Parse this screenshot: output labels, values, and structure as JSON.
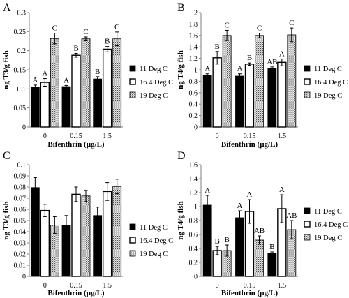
{
  "colors": {
    "11": "#000000",
    "16": "#ffffff",
    "19": "#cfcfcf",
    "axis": "#7f7f7f",
    "bar_stroke": "#000000"
  },
  "legend": [
    "11 Deg C",
    "16.4 Deg C",
    "19 Deg C"
  ],
  "chart_data": [
    {
      "type": "bar",
      "panel_label": "A",
      "categories": [
        "0",
        "0.15",
        "1.5"
      ],
      "xlabel": "Bifenthrin (µg/L)",
      "ylabel": "ng T3/g fish",
      "ylim": [
        0,
        0.3
      ],
      "yticks": [
        "0",
        "0.05",
        "0.1",
        "0.15",
        "0.2",
        "0.25",
        "0.3"
      ],
      "series": [
        {
          "name": "11 Deg C",
          "values": [
            0.105,
            0.106,
            0.126
          ],
          "errors": [
            0.005,
            0.003,
            0.006
          ],
          "letters": [
            "A",
            "A",
            "B"
          ]
        },
        {
          "name": "16.4 Deg C",
          "values": [
            0.117,
            0.188,
            0.204
          ],
          "errors": [
            0.01,
            0.005,
            0.007
          ],
          "letters": [
            "A",
            "B",
            "B"
          ]
        },
        {
          "name": "19 Deg C",
          "values": [
            0.232,
            0.231,
            0.231
          ],
          "errors": [
            0.014,
            0.005,
            0.018
          ],
          "letters": [
            "C",
            "C",
            "C"
          ]
        }
      ]
    },
    {
      "type": "bar",
      "panel_label": "B",
      "categories": [
        "0",
        "0.15",
        "1.5"
      ],
      "xlabel": "Bifenthrin (µg/L)",
      "ylabel": "ng T4/g fish",
      "ylim": [
        0,
        2
      ],
      "yticks": [
        "0",
        "0.2",
        "0.4",
        "0.6",
        "0.8",
        "1",
        "1.2",
        "1.4",
        "1.6",
        "1.8",
        "2"
      ],
      "series": [
        {
          "name": "11 Deg C",
          "values": [
            0.91,
            0.89,
            1.03
          ],
          "errors": [
            0.02,
            0.04,
            0.02
          ],
          "letters": [
            "A",
            "A",
            "AB"
          ]
        },
        {
          "name": "16.4 Deg C",
          "values": [
            1.21,
            1.1,
            1.13
          ],
          "errors": [
            0.11,
            0.02,
            0.06
          ],
          "letters": [
            "B",
            "B",
            "A"
          ]
        },
        {
          "name": "19 Deg C",
          "values": [
            1.6,
            1.6,
            1.61
          ],
          "errors": [
            0.09,
            0.04,
            0.12
          ],
          "letters": [
            "C",
            "C",
            "C"
          ]
        }
      ]
    },
    {
      "type": "bar",
      "panel_label": "C",
      "categories": [
        "0",
        "0.15",
        "1.5"
      ],
      "xlabel": "Bifenthrin (µg/L)",
      "ylabel": "ng T3/g fish",
      "ylim": [
        0,
        0.1
      ],
      "yticks": [
        "0",
        "0.01",
        "0.02",
        "0.03",
        "0.04",
        "0.05",
        "0.06",
        "0.07",
        "0.08",
        "0.09",
        "0.1"
      ],
      "series": [
        {
          "name": "11 Deg C",
          "values": [
            0.0795,
            0.046,
            0.0545
          ],
          "errors": [
            0.009,
            0.0085,
            0.0075
          ],
          "letters": [
            "",
            "",
            ""
          ]
        },
        {
          "name": "16.4 Deg C",
          "values": [
            0.059,
            0.0735,
            0.076
          ],
          "errors": [
            0.0055,
            0.0065,
            0.008
          ],
          "letters": [
            "",
            "",
            ""
          ]
        },
        {
          "name": "19 Deg C",
          "values": [
            0.046,
            0.072,
            0.0805
          ],
          "errors": [
            0.0075,
            0.005,
            0.0065
          ],
          "letters": [
            "",
            "",
            ""
          ]
        }
      ]
    },
    {
      "type": "bar",
      "panel_label": "D",
      "categories": [
        "0",
        "0.15",
        "1.5"
      ],
      "xlabel": "Bifenthrin (µg/L)",
      "ylabel": "ng T4/g fish",
      "ylim": [
        0,
        1.6
      ],
      "yticks": [
        "0",
        "0.2",
        "0.4",
        "0.6",
        "0.8",
        "1",
        "1.2",
        "1.4",
        "1.6"
      ],
      "series": [
        {
          "name": "11 Deg C",
          "values": [
            1.02,
            0.84,
            0.33
          ],
          "errors": [
            0.14,
            0.1,
            0.02
          ],
          "letters": [
            "A",
            "A",
            "B"
          ]
        },
        {
          "name": "16.4 Deg C",
          "values": [
            0.37,
            0.93,
            0.97
          ],
          "errors": [
            0.06,
            0.17,
            0.2
          ],
          "letters": [
            "B",
            "A",
            "A"
          ]
        },
        {
          "name": "19 Deg C",
          "values": [
            0.37,
            0.52,
            0.67
          ],
          "errors": [
            0.08,
            0.06,
            0.13
          ],
          "letters": [
            "B",
            "AB",
            "AB"
          ]
        }
      ]
    }
  ]
}
